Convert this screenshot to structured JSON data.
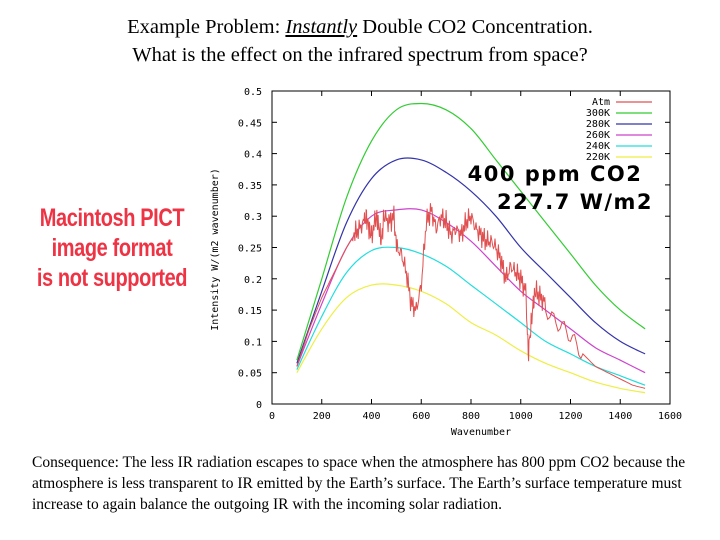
{
  "header": {
    "line1_prefix": "Example Problem:  ",
    "line1_emph": "Instantly",
    "line1_suffix": " Double CO2 Concentration.",
    "line2": "What is the effect on the infrared spectrum from space?"
  },
  "placeholder": {
    "line1": "Macintosh PICT",
    "line2": "image format",
    "line3": "is not supported"
  },
  "annotation": {
    "line1": "400 ppm CO2",
    "line2": "227.7 W/m2"
  },
  "footer": {
    "text": "Consequence:  The less IR radiation escapes to space when the atmosphere has 800 ppm CO2 because the atmosphere is less transparent to IR emitted by the Earth’s surface.  The Earth’s surface temperature must increase to again balance the outgoing IR with the incoming solar radiation."
  },
  "colors": {
    "Atm": "#e05050",
    "300K": "#33cc33",
    "280K": "#3333aa",
    "260K": "#cc44cc",
    "240K": "#22dddd",
    "220K": "#eeee44"
  },
  "chart_data": {
    "type": "line",
    "xlabel": "Wavenumber",
    "ylabel": "Intensity W/(m2 wavenumber)",
    "xlim": [
      0,
      1600
    ],
    "ylim": [
      0,
      0.5
    ],
    "xticks": [
      "0",
      "200",
      "400",
      "600",
      "800",
      "1000",
      "1200",
      "1400",
      "1600"
    ],
    "yticks": [
      "0",
      "0.05",
      "0.1",
      "0.15",
      "0.2",
      "0.25",
      "0.3",
      "0.35",
      "0.4",
      "0.45",
      "0.5"
    ],
    "legend_position": "top-right",
    "grid": false,
    "series": [
      {
        "name": "Atm",
        "x": [
          100,
          150,
          200,
          250,
          300,
          330,
          350,
          370,
          380,
          390,
          400,
          420,
          430,
          440,
          450,
          470,
          490,
          500,
          520,
          540,
          560,
          580,
          600,
          620,
          640,
          660,
          680,
          700,
          720,
          740,
          760,
          780,
          800,
          820,
          840,
          860,
          880,
          900,
          920,
          940,
          960,
          980,
          1000,
          1020,
          1030,
          1040,
          1050,
          1060,
          1080,
          1100,
          1150,
          1200,
          1250,
          1300,
          1350,
          1400,
          1450,
          1500
        ],
        "y": [
          0.06,
          0.12,
          0.17,
          0.21,
          0.25,
          0.27,
          0.28,
          0.29,
          0.3,
          0.28,
          0.27,
          0.3,
          0.28,
          0.26,
          0.3,
          0.29,
          0.3,
          0.25,
          0.24,
          0.21,
          0.16,
          0.15,
          0.19,
          0.29,
          0.31,
          0.28,
          0.3,
          0.29,
          0.27,
          0.28,
          0.27,
          0.29,
          0.3,
          0.28,
          0.27,
          0.26,
          0.26,
          0.25,
          0.23,
          0.2,
          0.22,
          0.21,
          0.2,
          0.18,
          0.08,
          0.12,
          0.16,
          0.18,
          0.17,
          0.16,
          0.13,
          0.1,
          0.08,
          0.06,
          0.05,
          0.04,
          0.03,
          0.025
        ]
      },
      {
        "name": "300K",
        "x": [
          100,
          200,
          300,
          400,
          500,
          600,
          700,
          800,
          900,
          1000,
          1100,
          1200,
          1300,
          1400,
          1500
        ],
        "y": [
          0.07,
          0.2,
          0.33,
          0.42,
          0.47,
          0.48,
          0.47,
          0.44,
          0.39,
          0.34,
          0.29,
          0.24,
          0.19,
          0.15,
          0.12
        ]
      },
      {
        "name": "280K",
        "x": [
          100,
          200,
          300,
          400,
          500,
          600,
          700,
          800,
          900,
          1000,
          1100,
          1200,
          1300,
          1400,
          1500
        ],
        "y": [
          0.065,
          0.18,
          0.29,
          0.36,
          0.39,
          0.39,
          0.37,
          0.34,
          0.3,
          0.25,
          0.21,
          0.17,
          0.13,
          0.1,
          0.08
        ]
      },
      {
        "name": "260K",
        "x": [
          100,
          200,
          300,
          400,
          500,
          600,
          700,
          800,
          900,
          1000,
          1100,
          1200,
          1300,
          1400,
          1500
        ],
        "y": [
          0.06,
          0.16,
          0.25,
          0.3,
          0.31,
          0.31,
          0.29,
          0.26,
          0.22,
          0.18,
          0.15,
          0.12,
          0.09,
          0.07,
          0.05
        ]
      },
      {
        "name": "240K",
        "x": [
          100,
          200,
          300,
          400,
          500,
          600,
          700,
          800,
          900,
          1000,
          1100,
          1200,
          1300,
          1400,
          1500
        ],
        "y": [
          0.055,
          0.14,
          0.21,
          0.245,
          0.25,
          0.24,
          0.22,
          0.19,
          0.16,
          0.13,
          0.1,
          0.08,
          0.06,
          0.045,
          0.03
        ]
      },
      {
        "name": "220K",
        "x": [
          100,
          200,
          300,
          400,
          500,
          600,
          700,
          800,
          900,
          1000,
          1100,
          1200,
          1300,
          1400,
          1500
        ],
        "y": [
          0.05,
          0.12,
          0.17,
          0.19,
          0.19,
          0.18,
          0.16,
          0.13,
          0.11,
          0.085,
          0.065,
          0.05,
          0.035,
          0.025,
          0.018
        ]
      }
    ]
  }
}
